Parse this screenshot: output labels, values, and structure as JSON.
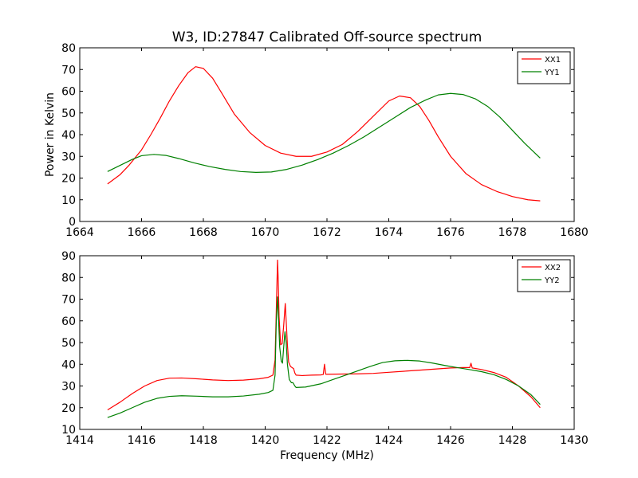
{
  "figure_title": "W3, ID:27847 Calibrated Off-source spectrum",
  "colors": {
    "red": "#ff0000",
    "green": "#008000"
  },
  "chart_data": [
    {
      "type": "line",
      "title": "W3, ID:27847 Calibrated Off-source spectrum",
      "xlabel": "",
      "ylabel": "Power in Kelvin",
      "xlim": [
        1664,
        1680
      ],
      "ylim": [
        0,
        80
      ],
      "xticks": [
        1664,
        1666,
        1668,
        1670,
        1672,
        1674,
        1676,
        1678,
        1680
      ],
      "yticks": [
        0,
        10,
        20,
        30,
        40,
        50,
        60,
        70,
        80
      ],
      "grid": false,
      "legend": "top-right",
      "series": [
        {
          "name": "XX1",
          "color": "#ff0000",
          "x": [
            1664.9,
            1665.3,
            1665.6,
            1666.0,
            1666.3,
            1666.6,
            1666.9,
            1667.2,
            1667.5,
            1667.75,
            1668.0,
            1668.3,
            1668.6,
            1669.0,
            1669.5,
            1670.0,
            1670.5,
            1671.0,
            1671.5,
            1672.0,
            1672.5,
            1673.0,
            1673.5,
            1674.0,
            1674.35,
            1674.7,
            1675.0,
            1675.3,
            1675.6,
            1676.0,
            1676.5,
            1677.0,
            1677.5,
            1678.0,
            1678.5,
            1678.9
          ],
          "y": [
            17.3,
            21.5,
            26.0,
            33.0,
            40.0,
            47.5,
            55.5,
            62.5,
            68.5,
            71.3,
            70.5,
            66.0,
            59.0,
            49.5,
            41.0,
            35.0,
            31.5,
            30.0,
            30.0,
            32.0,
            35.5,
            41.5,
            48.5,
            55.5,
            57.8,
            57.0,
            53.0,
            46.5,
            39.0,
            30.0,
            22.0,
            17.0,
            13.8,
            11.5,
            10.0,
            9.5
          ]
        },
        {
          "name": "YY1",
          "color": "#008000",
          "x": [
            1664.9,
            1665.3,
            1665.7,
            1666.0,
            1666.4,
            1666.8,
            1667.2,
            1667.7,
            1668.2,
            1668.7,
            1669.2,
            1669.7,
            1670.2,
            1670.7,
            1671.2,
            1671.7,
            1672.2,
            1672.7,
            1673.2,
            1673.7,
            1674.2,
            1674.7,
            1675.2,
            1675.6,
            1676.0,
            1676.4,
            1676.8,
            1677.2,
            1677.6,
            1678.0,
            1678.4,
            1678.9
          ],
          "y": [
            23.0,
            25.8,
            28.6,
            30.3,
            30.9,
            30.4,
            29.0,
            27.0,
            25.3,
            24.0,
            23.0,
            22.6,
            22.8,
            24.0,
            26.0,
            28.5,
            31.5,
            35.0,
            39.0,
            43.5,
            48.0,
            52.5,
            56.0,
            58.3,
            59.0,
            58.5,
            56.5,
            53.0,
            48.0,
            42.0,
            36.0,
            29.2
          ]
        }
      ]
    },
    {
      "type": "line",
      "title": "",
      "xlabel": "Frequency (MHz)",
      "ylabel": "",
      "xlim": [
        1414,
        1430
      ],
      "ylim": [
        10,
        90
      ],
      "xticks": [
        1414,
        1416,
        1418,
        1420,
        1422,
        1424,
        1426,
        1428,
        1430
      ],
      "yticks": [
        10,
        20,
        30,
        40,
        50,
        60,
        70,
        80,
        90
      ],
      "grid": false,
      "legend": "top-right",
      "series": [
        {
          "name": "XX2",
          "color": "#ff0000",
          "x": [
            1414.9,
            1415.3,
            1415.7,
            1416.1,
            1416.5,
            1416.9,
            1417.3,
            1417.8,
            1418.3,
            1418.8,
            1419.3,
            1419.8,
            1420.1,
            1420.25,
            1420.32,
            1420.36,
            1420.4,
            1420.42,
            1420.45,
            1420.5,
            1420.55,
            1420.6,
            1420.65,
            1420.68,
            1420.72,
            1420.76,
            1420.82,
            1420.87,
            1420.92,
            1420.96,
            1421.0,
            1421.2,
            1421.5,
            1421.8,
            1421.88,
            1421.92,
            1421.96,
            1422.05,
            1422.5,
            1423.0,
            1423.5,
            1424.0,
            1424.5,
            1425.0,
            1425.5,
            1426.0,
            1426.4,
            1426.62,
            1426.66,
            1426.7,
            1427.0,
            1427.4,
            1427.8,
            1428.2,
            1428.6,
            1428.9
          ],
          "y": [
            19.0,
            22.5,
            26.5,
            30.0,
            32.5,
            33.6,
            33.7,
            33.3,
            32.8,
            32.5,
            32.7,
            33.3,
            34.0,
            35.0,
            42.0,
            65.0,
            88.0,
            80.0,
            62.0,
            49.0,
            49.5,
            58.0,
            68.0,
            60.0,
            49.0,
            41.0,
            39.0,
            38.5,
            38.0,
            36.0,
            35.0,
            34.8,
            35.0,
            35.1,
            35.3,
            40.0,
            35.4,
            35.4,
            35.5,
            35.6,
            35.8,
            36.3,
            36.8,
            37.3,
            37.8,
            38.3,
            38.5,
            38.5,
            40.5,
            38.3,
            37.6,
            36.2,
            34.0,
            30.0,
            25.0,
            20.0
          ]
        },
        {
          "name": "YY2",
          "color": "#008000",
          "x": [
            1414.9,
            1415.3,
            1415.7,
            1416.1,
            1416.5,
            1416.9,
            1417.3,
            1417.8,
            1418.3,
            1418.8,
            1419.3,
            1419.8,
            1420.1,
            1420.25,
            1420.32,
            1420.36,
            1420.4,
            1420.43,
            1420.47,
            1420.52,
            1420.56,
            1420.6,
            1420.64,
            1420.68,
            1420.72,
            1420.78,
            1420.85,
            1420.9,
            1420.96,
            1421.0,
            1421.3,
            1421.8,
            1422.2,
            1422.6,
            1423.0,
            1423.4,
            1423.8,
            1424.2,
            1424.6,
            1425.0,
            1425.4,
            1425.8,
            1426.2,
            1426.6,
            1427.0,
            1427.4,
            1427.8,
            1428.2,
            1428.6,
            1428.9
          ],
          "y": [
            15.5,
            17.5,
            20.0,
            22.5,
            24.3,
            25.2,
            25.5,
            25.3,
            25.0,
            25.0,
            25.4,
            26.2,
            27.0,
            28.0,
            35.0,
            60.0,
            71.0,
            62.0,
            48.0,
            41.5,
            40.5,
            48.0,
            55.0,
            50.0,
            40.0,
            33.0,
            31.5,
            31.5,
            30.0,
            29.3,
            29.5,
            31.0,
            33.0,
            35.0,
            37.0,
            39.0,
            40.8,
            41.6,
            41.8,
            41.5,
            40.6,
            39.5,
            38.5,
            37.6,
            36.6,
            35.2,
            33.0,
            30.0,
            26.0,
            21.5
          ]
        }
      ]
    }
  ]
}
